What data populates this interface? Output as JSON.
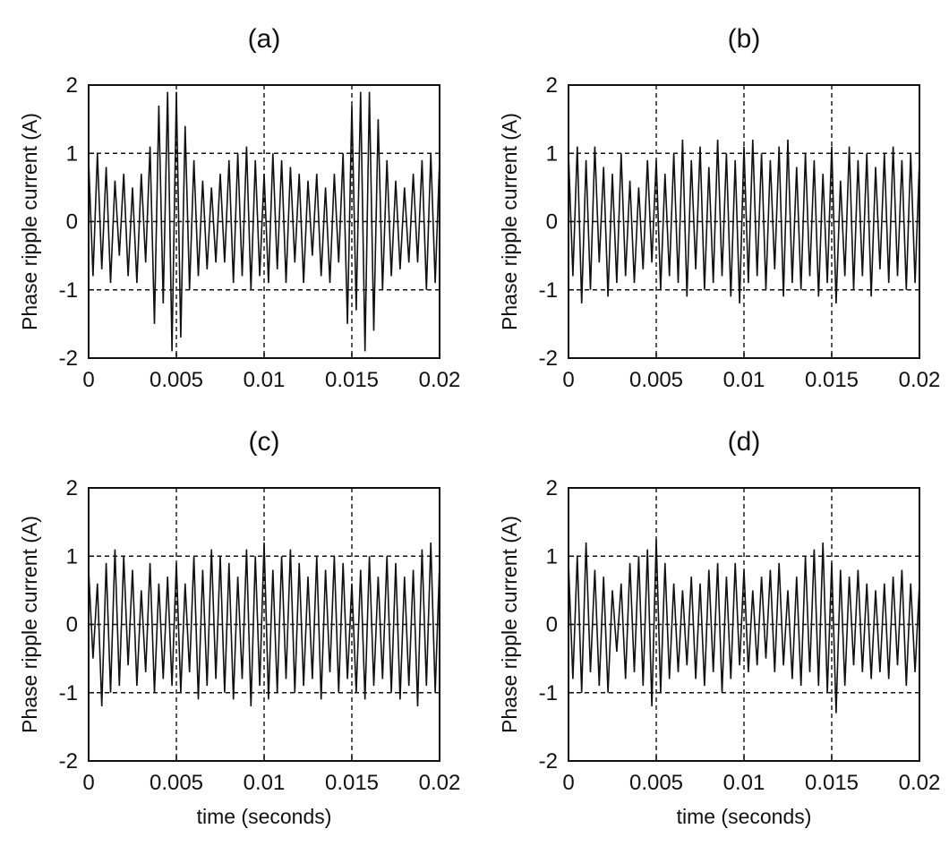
{
  "chart_data": [
    {
      "type": "line",
      "title": "(a)",
      "xlabel": "",
      "ylabel": "Phase ripple current (A)",
      "xlim": [
        0,
        0.02
      ],
      "ylim": [
        -2,
        2
      ],
      "xticks": [
        0,
        0.005,
        0.01,
        0.015,
        0.02
      ],
      "xtick_labels": [
        "0",
        "0.005",
        "0.01",
        "0.015",
        "0.02"
      ],
      "yticks": [
        -2,
        -1,
        0,
        1,
        2
      ],
      "ytick_labels": [
        "-2",
        "-1",
        "0",
        "1",
        "2"
      ],
      "grid": true,
      "series": [
        {
          "x": [
            0,
            0.00025,
            0.0005,
            0.00075,
            0.001,
            0.00125,
            0.0015,
            0.00175,
            0.002,
            0.00225,
            0.0025,
            0.00275,
            0.003,
            0.00325,
            0.0035,
            0.00375,
            0.004,
            0.00425,
            0.0045,
            0.00475,
            0.005,
            0.00525,
            0.0055,
            0.00575,
            0.006,
            0.00625,
            0.0065,
            0.00675,
            0.007,
            0.00725,
            0.0075,
            0.00775,
            0.008,
            0.00825,
            0.0085,
            0.00875,
            0.009,
            0.00925,
            0.0095,
            0.00975,
            0.01,
            0.01025,
            0.0105,
            0.01075,
            0.011,
            0.01125,
            0.0115,
            0.01175,
            0.012,
            0.01225,
            0.0125,
            0.01275,
            0.013,
            0.01325,
            0.0135,
            0.01375,
            0.014,
            0.01425,
            0.0145,
            0.01475,
            0.015,
            0.01525,
            0.0155,
            0.01575,
            0.016,
            0.01625,
            0.0165,
            0.01675,
            0.017,
            0.01725,
            0.0175,
            0.01775,
            0.018,
            0.01825,
            0.0185,
            0.01875,
            0.019,
            0.01925,
            0.0195,
            0.01975,
            0.02
          ],
          "y": [
            0.9,
            -0.8,
            1.0,
            -0.7,
            0.8,
            -0.9,
            0.6,
            -0.5,
            0.7,
            -0.8,
            0.5,
            -0.9,
            0.7,
            -0.6,
            1.1,
            -1.5,
            1.7,
            -1.2,
            1.9,
            -1.9,
            1.9,
            -1.7,
            1.4,
            -1.0,
            0.9,
            -0.8,
            0.6,
            -0.7,
            0.5,
            -0.6,
            0.7,
            -0.6,
            0.9,
            -0.9,
            1.0,
            -0.8,
            1.1,
            -1.0,
            0.9,
            -0.8,
            0.7,
            -0.9,
            1.0,
            -0.7,
            0.9,
            -0.9,
            0.8,
            -0.6,
            0.7,
            -0.9,
            0.6,
            -0.5,
            0.7,
            -0.8,
            0.5,
            -0.9,
            0.7,
            -0.6,
            1.0,
            -1.5,
            1.7,
            -1.3,
            1.9,
            -1.9,
            1.9,
            -1.6,
            1.5,
            -1.0,
            0.9,
            -0.8,
            0.6,
            -0.7,
            0.5,
            -0.6,
            0.7,
            -0.6,
            0.9,
            -1.0,
            1.0,
            -0.9,
            0.9
          ]
        }
      ]
    },
    {
      "type": "line",
      "title": "(b)",
      "xlabel": "",
      "ylabel": "Phase ripple current (A)",
      "xlim": [
        0,
        0.02
      ],
      "ylim": [
        -2,
        2
      ],
      "xticks": [
        0,
        0.005,
        0.01,
        0.015,
        0.02
      ],
      "xtick_labels": [
        "0",
        "0.005",
        "0.01",
        "0.015",
        "0.02"
      ],
      "yticks": [
        -2,
        -1,
        0,
        1,
        2
      ],
      "ytick_labels": [
        "-2",
        "-1",
        "0",
        "1",
        "2"
      ],
      "grid": true,
      "series": [
        {
          "x": [
            0,
            0.00025,
            0.0005,
            0.00075,
            0.001,
            0.00125,
            0.0015,
            0.00175,
            0.002,
            0.00225,
            0.0025,
            0.00275,
            0.003,
            0.00325,
            0.0035,
            0.00375,
            0.004,
            0.00425,
            0.0045,
            0.00475,
            0.005,
            0.00525,
            0.0055,
            0.00575,
            0.006,
            0.00625,
            0.0065,
            0.00675,
            0.007,
            0.00725,
            0.0075,
            0.00775,
            0.008,
            0.00825,
            0.0085,
            0.00875,
            0.009,
            0.00925,
            0.0095,
            0.00975,
            0.01,
            0.01025,
            0.0105,
            0.01075,
            0.011,
            0.01125,
            0.0115,
            0.01175,
            0.012,
            0.01225,
            0.0125,
            0.01275,
            0.013,
            0.01325,
            0.0135,
            0.01375,
            0.014,
            0.01425,
            0.0145,
            0.01475,
            0.015,
            0.01525,
            0.0155,
            0.01575,
            0.016,
            0.01625,
            0.0165,
            0.01675,
            0.017,
            0.01725,
            0.0175,
            0.01775,
            0.018,
            0.01825,
            0.0185,
            0.01875,
            0.019,
            0.01925,
            0.0195,
            0.01975,
            0.02
          ],
          "y": [
            1.0,
            -0.8,
            1.1,
            -1.2,
            0.9,
            -1.0,
            1.1,
            -0.6,
            0.8,
            -1.1,
            0.7,
            -0.9,
            1.0,
            -0.8,
            0.6,
            -0.9,
            0.5,
            -0.7,
            0.9,
            -0.6,
            0.9,
            -1.0,
            0.7,
            -0.8,
            1.0,
            -0.9,
            1.2,
            -1.1,
            0.9,
            -0.7,
            1.1,
            -1.0,
            0.8,
            -0.9,
            1.2,
            -0.8,
            1.0,
            -1.1,
            0.9,
            -1.2,
            1.1,
            -0.9,
            1.2,
            -0.8,
            1.0,
            -1.0,
            0.9,
            -0.7,
            1.1,
            -1.1,
            1.2,
            -0.9,
            0.8,
            -1.0,
            1.0,
            -0.8,
            0.9,
            -1.1,
            0.7,
            -0.9,
            1.1,
            -1.2,
            0.6,
            -0.8,
            1.1,
            -1.0,
            0.9,
            -0.8,
            1.0,
            -1.1,
            0.8,
            -0.7,
            1.0,
            -0.9,
            1.1,
            -0.8,
            0.9,
            -1.0,
            1.0,
            -0.9,
            0.9
          ]
        }
      ]
    },
    {
      "type": "line",
      "title": "(c)",
      "xlabel": "time (seconds)",
      "ylabel": "Phase ripple current (A)",
      "xlim": [
        0,
        0.02
      ],
      "ylim": [
        -2,
        2
      ],
      "xticks": [
        0,
        0.005,
        0.01,
        0.015,
        0.02
      ],
      "xtick_labels": [
        "0",
        "0.005",
        "0.01",
        "0.015",
        "0.02"
      ],
      "yticks": [
        -2,
        -1,
        0,
        1,
        2
      ],
      "ytick_labels": [
        "-2",
        "-1",
        "0",
        "1",
        "2"
      ],
      "grid": true,
      "series": [
        {
          "x": [
            0,
            0.00025,
            0.0005,
            0.00075,
            0.001,
            0.00125,
            0.0015,
            0.00175,
            0.002,
            0.00225,
            0.0025,
            0.00275,
            0.003,
            0.00325,
            0.0035,
            0.00375,
            0.004,
            0.00425,
            0.0045,
            0.00475,
            0.005,
            0.00525,
            0.0055,
            0.00575,
            0.006,
            0.00625,
            0.0065,
            0.00675,
            0.007,
            0.00725,
            0.0075,
            0.00775,
            0.008,
            0.00825,
            0.0085,
            0.00875,
            0.009,
            0.00925,
            0.0095,
            0.00975,
            0.01,
            0.01025,
            0.0105,
            0.01075,
            0.011,
            0.01125,
            0.0115,
            0.01175,
            0.012,
            0.01225,
            0.0125,
            0.01275,
            0.013,
            0.01325,
            0.0135,
            0.01375,
            0.014,
            0.01425,
            0.0145,
            0.01475,
            0.015,
            0.01525,
            0.0155,
            0.01575,
            0.016,
            0.01625,
            0.0165,
            0.01675,
            0.017,
            0.01725,
            0.0175,
            0.01775,
            0.018,
            0.01825,
            0.0185,
            0.01875,
            0.019,
            0.01925,
            0.0195,
            0.01975,
            0.02
          ],
          "y": [
            0.8,
            -0.5,
            0.6,
            -1.2,
            0.9,
            -1.0,
            1.1,
            -0.9,
            1.0,
            -0.6,
            0.8,
            -0.9,
            0.5,
            -0.7,
            0.9,
            -1.0,
            0.6,
            -0.8,
            0.7,
            -0.9,
            0.9,
            -1.0,
            0.6,
            -0.7,
            1.0,
            -1.1,
            0.8,
            -0.9,
            1.1,
            -0.8,
            1.0,
            -1.0,
            0.9,
            -1.1,
            0.7,
            -0.8,
            1.1,
            -1.2,
            1.0,
            -0.9,
            1.2,
            -1.1,
            0.8,
            -1.0,
            1.0,
            -0.8,
            1.1,
            -1.0,
            0.9,
            -0.9,
            0.7,
            -0.8,
            1.0,
            -1.1,
            0.8,
            -0.7,
            1.0,
            -1.0,
            0.9,
            -0.8,
            0.6,
            -1.0,
            0.8,
            -1.1,
            1.0,
            -0.9,
            0.7,
            -0.8,
            1.0,
            -1.0,
            0.9,
            -1.1,
            0.7,
            -0.9,
            0.8,
            -1.2,
            1.1,
            -0.9,
            1.2,
            -1.0,
            0.9
          ]
        }
      ]
    },
    {
      "type": "line",
      "title": "(d)",
      "xlabel": "time (seconds)",
      "ylabel": "Phase ripple current (A)",
      "xlim": [
        0,
        0.02
      ],
      "ylim": [
        -2,
        2
      ],
      "xticks": [
        0,
        0.005,
        0.01,
        0.015,
        0.02
      ],
      "xtick_labels": [
        "0",
        "0.005",
        "0.01",
        "0.015",
        "0.02"
      ],
      "yticks": [
        -2,
        -1,
        0,
        1,
        2
      ],
      "ytick_labels": [
        "-2",
        "-1",
        "0",
        "1",
        "2"
      ],
      "grid": true,
      "series": [
        {
          "x": [
            0,
            0.00025,
            0.0005,
            0.00075,
            0.001,
            0.00125,
            0.0015,
            0.00175,
            0.002,
            0.00225,
            0.0025,
            0.00275,
            0.003,
            0.00325,
            0.0035,
            0.00375,
            0.004,
            0.00425,
            0.0045,
            0.00475,
            0.005,
            0.00525,
            0.0055,
            0.00575,
            0.006,
            0.00625,
            0.0065,
            0.00675,
            0.007,
            0.00725,
            0.0075,
            0.00775,
            0.008,
            0.00825,
            0.0085,
            0.00875,
            0.009,
            0.00925,
            0.0095,
            0.00975,
            0.01,
            0.01025,
            0.0105,
            0.01075,
            0.011,
            0.01125,
            0.0115,
            0.01175,
            0.012,
            0.01225,
            0.0125,
            0.01275,
            0.013,
            0.01325,
            0.0135,
            0.01375,
            0.014,
            0.01425,
            0.0145,
            0.01475,
            0.015,
            0.01525,
            0.0155,
            0.01575,
            0.016,
            0.01625,
            0.0165,
            0.01675,
            0.017,
            0.01725,
            0.0175,
            0.01775,
            0.018,
            0.01825,
            0.0185,
            0.01875,
            0.019,
            0.01925,
            0.0195,
            0.01975,
            0.02
          ],
          "y": [
            0.9,
            -0.8,
            1.0,
            -1.0,
            1.2,
            -0.7,
            0.8,
            -0.9,
            0.7,
            -1.0,
            0.5,
            -0.4,
            0.6,
            -0.8,
            0.9,
            -0.7,
            1.0,
            -0.9,
            1.1,
            -1.2,
            1.25,
            -1.0,
            0.9,
            -0.8,
            0.6,
            -0.7,
            0.5,
            -0.6,
            0.7,
            -0.8,
            0.6,
            -0.9,
            0.8,
            -0.7,
            0.9,
            -1.0,
            0.7,
            -0.8,
            0.9,
            -0.6,
            0.8,
            -0.7,
            0.5,
            -0.6,
            0.7,
            -0.5,
            0.8,
            -0.7,
            0.9,
            -0.6,
            0.5,
            -0.8,
            0.7,
            -0.9,
            1.0,
            -0.7,
            1.1,
            -0.9,
            1.2,
            -1.0,
            0.9,
            -1.3,
            0.8,
            -0.9,
            0.7,
            -0.6,
            0.8,
            -0.7,
            0.6,
            -0.8,
            0.5,
            -0.7,
            0.6,
            -0.8,
            0.7,
            -0.6,
            0.8,
            -0.9,
            0.6,
            -0.7,
            0.6
          ]
        }
      ]
    }
  ]
}
